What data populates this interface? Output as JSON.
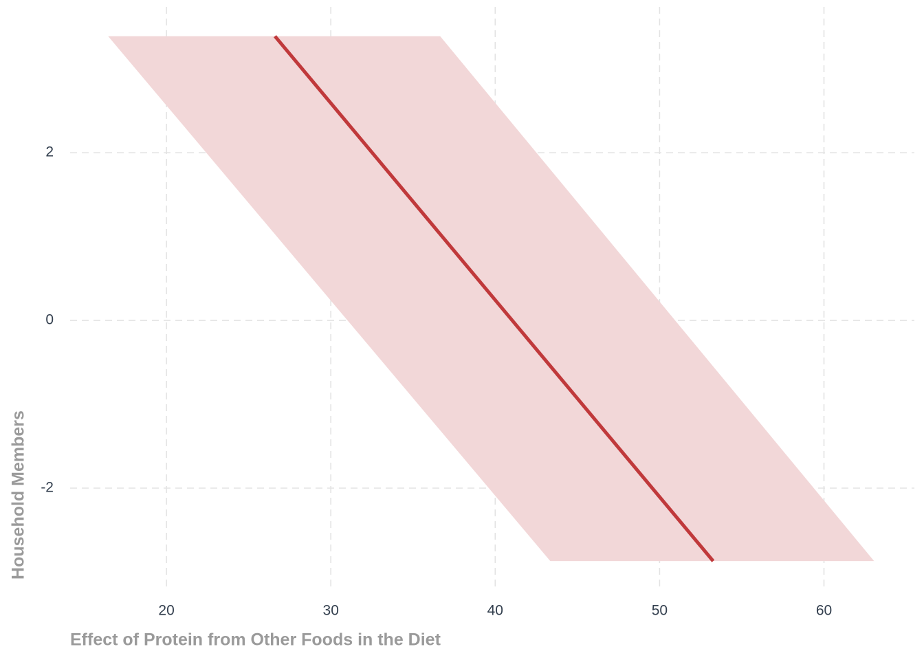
{
  "chart_data": {
    "type": "line",
    "x_label": "Effect of Protein from Other Foods in the Diet",
    "y_label": "Household Members",
    "xlim": [
      14.14,
      65.5
    ],
    "ylim": [
      -3.23,
      3.74
    ],
    "xticks": [
      20,
      30,
      40,
      50,
      60
    ],
    "yticks": [
      -2,
      0,
      2
    ],
    "grid": true,
    "series": [
      {
        "color": "#c0393b",
        "band_color": "#f2d7d8",
        "x": [
          26.6,
          53.26
        ],
        "values": [
          3.39,
          -2.87
        ],
        "band_x_lower": [
          16.45,
          43.35
        ],
        "band_x_upper": [
          36.65,
          63.05
        ]
      }
    ]
  }
}
